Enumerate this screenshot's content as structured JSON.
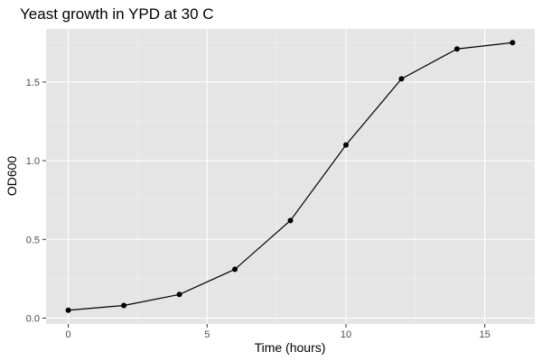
{
  "chart_data": {
    "type": "line",
    "title": "Yeast growth in YPD at 30 C",
    "xlabel": "Time (hours)",
    "ylabel": "OD600",
    "x": [
      0,
      2,
      4,
      6,
      8,
      10,
      12,
      14,
      16
    ],
    "series": [
      {
        "values": [
          0.05,
          0.08,
          0.15,
          0.31,
          0.62,
          1.1,
          1.52,
          1.71,
          1.75
        ]
      }
    ],
    "xlim": [
      -0.8,
      16.8
    ],
    "ylim": [
      -0.0375,
      1.8375
    ],
    "x_ticks": [
      0,
      5,
      10,
      15
    ],
    "x_tick_labels": [
      "0",
      "5",
      "10",
      "15"
    ],
    "y_ticks": [
      0.0,
      0.5,
      1.0,
      1.5
    ],
    "y_tick_labels": [
      "0.0",
      "0.5",
      "1.0",
      "1.5"
    ],
    "x_minor_ticks": [
      2.5,
      7.5,
      12.5
    ],
    "y_minor_ticks": [
      0.25,
      0.75,
      1.25,
      1.75
    ],
    "grid": true,
    "legend": "none",
    "colors": {
      "panel_background": "#e5e5e5",
      "grid_major": "#ffffff",
      "grid_minor": "#f2f2f2",
      "line": "#000000",
      "point": "#000000",
      "tick": "#333333",
      "tick_label": "#4d4d4d"
    }
  }
}
